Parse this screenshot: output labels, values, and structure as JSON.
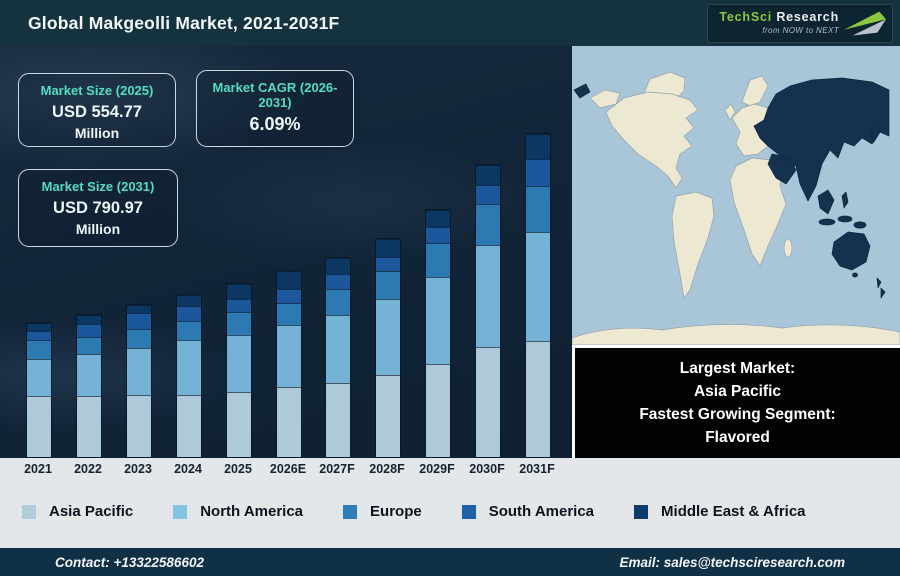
{
  "header": {
    "title": "Global Makgeolli Market, 2021-2031F",
    "logo": {
      "brand_primary": "TechSci",
      "brand_secondary": "Research",
      "tagline": "from NOW to NEXT",
      "brand_green": "#8dc63f"
    }
  },
  "info_cards": [
    {
      "title": "Market Size (2025)",
      "value": "USD 554.77",
      "unit": "Million"
    },
    {
      "title": "Market CAGR (2026-2031)",
      "value": "6.09%",
      "unit": ""
    },
    {
      "title": "Market Size (2031)",
      "value": "USD 790.97",
      "unit": "Million"
    }
  ],
  "chart_data": {
    "type": "bar",
    "stacked": true,
    "title": "Global Makgeolli Market, 2021-2031F",
    "categories": [
      "2021",
      "2022",
      "2023",
      "2024",
      "2025",
      "2026E",
      "2027F",
      "2028F",
      "2029F",
      "2030F",
      "2031F"
    ],
    "series": [
      {
        "name": "Asia Pacific",
        "color": "#aec9d9",
        "values": [
          61,
          61,
          62,
          62,
          65,
          70,
          74,
          82,
          93,
          110,
          116
        ]
      },
      {
        "name": "North America",
        "color": "#74b3d6",
        "values": [
          37,
          42,
          47,
          55,
          57,
          62,
          68,
          76,
          87,
          102,
          109
        ]
      },
      {
        "name": "Europe",
        "color": "#2d7ab2",
        "values": [
          19,
          17,
          19,
          19,
          23,
          22,
          26,
          28,
          34,
          41,
          46
        ]
      },
      {
        "name": "South America",
        "color": "#1c569b",
        "values": [
          9,
          13,
          16,
          15,
          13,
          14,
          15,
          14,
          16,
          19,
          27
        ]
      },
      {
        "name": "Middle East & Africa",
        "color": "#0c3763",
        "values": [
          8,
          9,
          8,
          11,
          15,
          18,
          16,
          18,
          17,
          20,
          25
        ]
      }
    ],
    "value_axis_visible": false,
    "units": "schematic bar-segment heights in screen pixels (no numeric value axis shown)",
    "legend_position": "bottom",
    "annotations": {
      "market_size_2025": "USD 554.77 Million",
      "market_size_2031": "USD 790.97 Million",
      "cagr_2026_2031": "6.09%"
    }
  },
  "legend": {
    "items": [
      {
        "label": "Asia Pacific",
        "color": "#b2cedc"
      },
      {
        "label": "North America",
        "color": "#85c4e2"
      },
      {
        "label": "Europe",
        "color": "#2e7cb8"
      },
      {
        "label": "South America",
        "color": "#1e63a8"
      },
      {
        "label": "Middle East & Africa",
        "color": "#0d3c6b"
      }
    ]
  },
  "map": {
    "ocean_color": "#a9c6d8",
    "land_color": "#ece8d1",
    "highlight_color": "#16314d",
    "highlighted_region_label": "Asia Pacific"
  },
  "callout_box": {
    "lines": [
      "Largest Market:",
      "Asia Pacific",
      "Fastest Growing Segment:",
      "Flavored"
    ]
  },
  "footer": {
    "contact": "Contact: +13322586602",
    "email": "Email: sales@techsciresearch.com"
  }
}
